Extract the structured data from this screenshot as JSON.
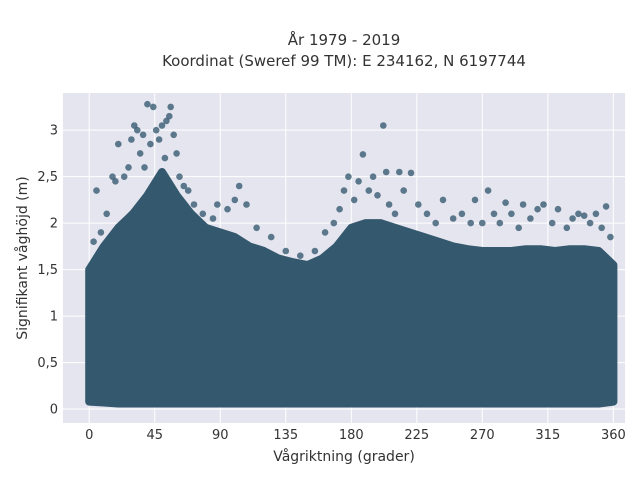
{
  "chart_data": {
    "type": "scatter",
    "title": "År 1979 - 2019",
    "subtitle": "Koordinat (Sweref 99 TM): E 234162, N 6197744",
    "xlabel": "Vågriktning (grader)",
    "ylabel": "Signifikant våghöjd (m)",
    "xlim": [
      -18,
      368
    ],
    "ylim": [
      -0.15,
      3.4
    ],
    "xticks": [
      0,
      45,
      90,
      135,
      180,
      225,
      270,
      315,
      360
    ],
    "xtick_labels": [
      "0",
      "45",
      "90",
      "135",
      "180",
      "225",
      "270",
      "315",
      "360"
    ],
    "yticks": [
      0,
      0.5,
      1,
      1.5,
      2,
      2.5,
      3
    ],
    "ytick_labels": [
      "0",
      "0,5",
      "1",
      "1,5",
      "2",
      "2,5",
      "3"
    ],
    "grid": true,
    "legend": "none",
    "marker_color": "#34586e",
    "background_color": "#e5e5ef",
    "density_envelope": {
      "x": [
        0,
        10,
        20,
        30,
        40,
        50,
        60,
        70,
        80,
        90,
        100,
        110,
        120,
        130,
        140,
        150,
        160,
        170,
        180,
        190,
        200,
        210,
        220,
        230,
        240,
        250,
        260,
        270,
        280,
        290,
        300,
        310,
        320,
        330,
        340,
        350,
        360
      ],
      "y_lower": [
        0.08,
        0.07,
        0.06,
        0.06,
        0.06,
        0.06,
        0.06,
        0.06,
        0.06,
        0.06,
        0.06,
        0.06,
        0.06,
        0.06,
        0.06,
        0.06,
        0.06,
        0.06,
        0.06,
        0.06,
        0.06,
        0.06,
        0.06,
        0.06,
        0.06,
        0.06,
        0.06,
        0.06,
        0.06,
        0.06,
        0.06,
        0.06,
        0.06,
        0.06,
        0.06,
        0.06,
        0.08
      ],
      "y_upper": [
        1.5,
        1.75,
        1.95,
        2.1,
        2.3,
        2.55,
        2.3,
        2.1,
        1.95,
        1.9,
        1.85,
        1.75,
        1.7,
        1.62,
        1.58,
        1.55,
        1.62,
        1.75,
        1.95,
        2.0,
        2.0,
        1.95,
        1.9,
        1.85,
        1.8,
        1.75,
        1.72,
        1.7,
        1.7,
        1.7,
        1.72,
        1.72,
        1.7,
        1.72,
        1.72,
        1.7,
        1.55
      ]
    },
    "outliers": [
      {
        "x": 3,
        "y": 1.8
      },
      {
        "x": 5,
        "y": 2.35
      },
      {
        "x": 8,
        "y": 1.9
      },
      {
        "x": 12,
        "y": 2.1
      },
      {
        "x": 16,
        "y": 2.5
      },
      {
        "x": 18,
        "y": 2.45
      },
      {
        "x": 20,
        "y": 2.85
      },
      {
        "x": 24,
        "y": 2.5
      },
      {
        "x": 27,
        "y": 2.6
      },
      {
        "x": 29,
        "y": 2.9
      },
      {
        "x": 31,
        "y": 3.05
      },
      {
        "x": 33,
        "y": 3.0
      },
      {
        "x": 35,
        "y": 2.75
      },
      {
        "x": 37,
        "y": 2.95
      },
      {
        "x": 38,
        "y": 2.6
      },
      {
        "x": 40,
        "y": 3.28
      },
      {
        "x": 42,
        "y": 2.85
      },
      {
        "x": 44,
        "y": 3.25
      },
      {
        "x": 46,
        "y": 3.0
      },
      {
        "x": 48,
        "y": 2.9
      },
      {
        "x": 50,
        "y": 3.05
      },
      {
        "x": 52,
        "y": 2.7
      },
      {
        "x": 53,
        "y": 3.1
      },
      {
        "x": 55,
        "y": 3.15
      },
      {
        "x": 56,
        "y": 3.25
      },
      {
        "x": 58,
        "y": 2.95
      },
      {
        "x": 60,
        "y": 2.75
      },
      {
        "x": 62,
        "y": 2.5
      },
      {
        "x": 65,
        "y": 2.4
      },
      {
        "x": 68,
        "y": 2.35
      },
      {
        "x": 72,
        "y": 2.2
      },
      {
        "x": 78,
        "y": 2.1
      },
      {
        "x": 85,
        "y": 2.05
      },
      {
        "x": 88,
        "y": 2.2
      },
      {
        "x": 95,
        "y": 2.15
      },
      {
        "x": 100,
        "y": 2.25
      },
      {
        "x": 103,
        "y": 2.4
      },
      {
        "x": 108,
        "y": 2.2
      },
      {
        "x": 115,
        "y": 1.95
      },
      {
        "x": 125,
        "y": 1.85
      },
      {
        "x": 135,
        "y": 1.7
      },
      {
        "x": 145,
        "y": 1.65
      },
      {
        "x": 155,
        "y": 1.7
      },
      {
        "x": 162,
        "y": 1.9
      },
      {
        "x": 168,
        "y": 2.0
      },
      {
        "x": 172,
        "y": 2.15
      },
      {
        "x": 175,
        "y": 2.35
      },
      {
        "x": 178,
        "y": 2.5
      },
      {
        "x": 182,
        "y": 2.25
      },
      {
        "x": 185,
        "y": 2.45
      },
      {
        "x": 188,
        "y": 2.74
      },
      {
        "x": 192,
        "y": 2.35
      },
      {
        "x": 195,
        "y": 2.5
      },
      {
        "x": 198,
        "y": 2.3
      },
      {
        "x": 202,
        "y": 3.05
      },
      {
        "x": 204,
        "y": 2.55
      },
      {
        "x": 206,
        "y": 2.2
      },
      {
        "x": 210,
        "y": 2.1
      },
      {
        "x": 213,
        "y": 2.55
      },
      {
        "x": 216,
        "y": 2.35
      },
      {
        "x": 221,
        "y": 2.54
      },
      {
        "x": 226,
        "y": 2.2
      },
      {
        "x": 232,
        "y": 2.1
      },
      {
        "x": 238,
        "y": 2.0
      },
      {
        "x": 243,
        "y": 2.25
      },
      {
        "x": 250,
        "y": 2.05
      },
      {
        "x": 256,
        "y": 2.1
      },
      {
        "x": 262,
        "y": 2.0
      },
      {
        "x": 265,
        "y": 2.25
      },
      {
        "x": 270,
        "y": 2.0
      },
      {
        "x": 274,
        "y": 2.35
      },
      {
        "x": 278,
        "y": 2.1
      },
      {
        "x": 282,
        "y": 2.0
      },
      {
        "x": 286,
        "y": 2.22
      },
      {
        "x": 290,
        "y": 2.1
      },
      {
        "x": 295,
        "y": 1.95
      },
      {
        "x": 298,
        "y": 2.2
      },
      {
        "x": 303,
        "y": 2.05
      },
      {
        "x": 308,
        "y": 2.15
      },
      {
        "x": 312,
        "y": 2.2
      },
      {
        "x": 318,
        "y": 2.0
      },
      {
        "x": 322,
        "y": 2.15
      },
      {
        "x": 328,
        "y": 1.95
      },
      {
        "x": 332,
        "y": 2.05
      },
      {
        "x": 336,
        "y": 2.1
      },
      {
        "x": 340,
        "y": 2.08
      },
      {
        "x": 344,
        "y": 2.0
      },
      {
        "x": 348,
        "y": 2.1
      },
      {
        "x": 352,
        "y": 1.95
      },
      {
        "x": 355,
        "y": 2.18
      },
      {
        "x": 358,
        "y": 1.85
      }
    ]
  }
}
